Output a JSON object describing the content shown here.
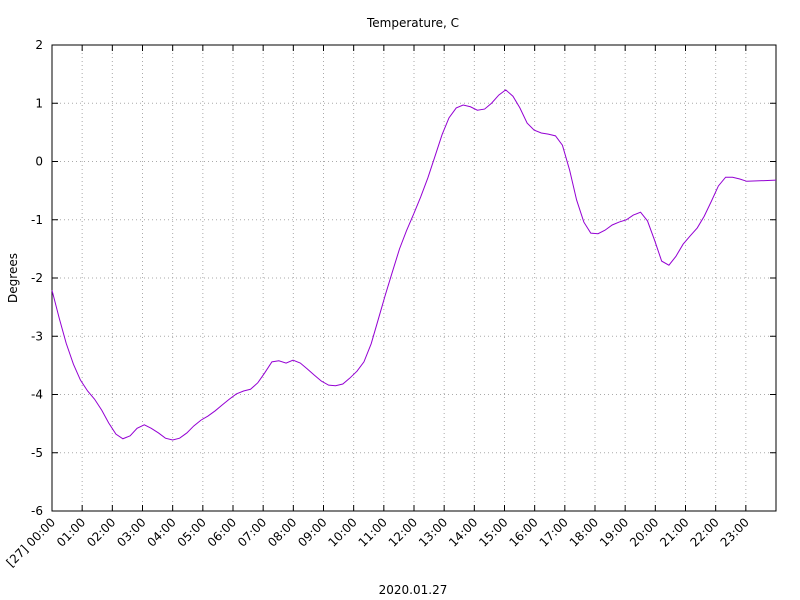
{
  "chart_data": {
    "type": "line",
    "title": "Temperature, C",
    "xlabel": "2020.01.27",
    "ylabel": "Degrees",
    "x": [
      0,
      0.24,
      0.47,
      0.71,
      0.94,
      1.18,
      1.41,
      1.65,
      1.88,
      2.12,
      2.35,
      2.59,
      2.82,
      3.06,
      3.29,
      3.53,
      3.76,
      4.0,
      4.23,
      4.47,
      4.7,
      4.94,
      5.17,
      5.41,
      5.64,
      5.88,
      6.11,
      6.35,
      6.58,
      6.82,
      7.05,
      7.29,
      7.52,
      7.76,
      7.99,
      8.23,
      8.46,
      8.7,
      8.93,
      9.17,
      9.4,
      9.64,
      9.87,
      10.11,
      10.34,
      10.58,
      10.81,
      11.05,
      11.28,
      11.52,
      11.75,
      11.99,
      12.22,
      12.46,
      12.69,
      12.93,
      13.16,
      13.4,
      13.63,
      13.87,
      14.1,
      14.34,
      14.57,
      14.81,
      15.04,
      15.28,
      15.51,
      15.75,
      15.98,
      16.22,
      16.45,
      16.69,
      16.92,
      17.16,
      17.39,
      17.63,
      17.86,
      18.1,
      18.33,
      18.57,
      18.8,
      19.04,
      19.27,
      19.51,
      19.74,
      19.98,
      20.21,
      20.45,
      20.68,
      20.92,
      21.15,
      21.39,
      21.62,
      21.86,
      22.09,
      22.33,
      22.56,
      22.8,
      23.03,
      24
    ],
    "series": [
      {
        "name": "Temperature",
        "color": "#9400d3",
        "values": [
          -2.21,
          -2.69,
          -3.12,
          -3.48,
          -3.75,
          -3.94,
          -4.08,
          -4.27,
          -4.49,
          -4.68,
          -4.76,
          -4.71,
          -4.58,
          -4.52,
          -4.58,
          -4.66,
          -4.75,
          -4.78,
          -4.75,
          -4.66,
          -4.54,
          -4.44,
          -4.37,
          -4.28,
          -4.18,
          -4.08,
          -3.99,
          -3.94,
          -3.91,
          -3.8,
          -3.63,
          -3.44,
          -3.42,
          -3.46,
          -3.41,
          -3.46,
          -3.56,
          -3.67,
          -3.77,
          -3.84,
          -3.85,
          -3.82,
          -3.72,
          -3.6,
          -3.44,
          -3.13,
          -2.72,
          -2.29,
          -1.9,
          -1.5,
          -1.19,
          -0.9,
          -0.61,
          -0.28,
          0.08,
          0.46,
          0.75,
          0.92,
          0.97,
          0.94,
          0.88,
          0.9,
          1.0,
          1.14,
          1.23,
          1.12,
          0.92,
          0.66,
          0.54,
          0.49,
          0.47,
          0.44,
          0.28,
          -0.15,
          -0.66,
          -1.04,
          -1.23,
          -1.24,
          -1.18,
          -1.09,
          -1.04,
          -1.0,
          -0.92,
          -0.87,
          -1.02,
          -1.36,
          -1.71,
          -1.78,
          -1.63,
          -1.42,
          -1.28,
          -1.14,
          -0.94,
          -0.68,
          -0.42,
          -0.27,
          -0.27,
          -0.3,
          -0.34,
          -0.32
        ]
      }
    ],
    "xlim": [
      0,
      24
    ],
    "xticks": [
      {
        "value": 0,
        "label": "[27] 00:00"
      },
      {
        "value": 1,
        "label": "01:00"
      },
      {
        "value": 2,
        "label": "02:00"
      },
      {
        "value": 3,
        "label": "03:00"
      },
      {
        "value": 4,
        "label": "04:00"
      },
      {
        "value": 5,
        "label": "05:00"
      },
      {
        "value": 6,
        "label": "06:00"
      },
      {
        "value": 7,
        "label": "07:00"
      },
      {
        "value": 8,
        "label": "08:00"
      },
      {
        "value": 9,
        "label": "09:00"
      },
      {
        "value": 10,
        "label": "10:00"
      },
      {
        "value": 11,
        "label": "11:00"
      },
      {
        "value": 12,
        "label": "12:00"
      },
      {
        "value": 13,
        "label": "13:00"
      },
      {
        "value": 14,
        "label": "14:00"
      },
      {
        "value": 15,
        "label": "15:00"
      },
      {
        "value": 16,
        "label": "16:00"
      },
      {
        "value": 17,
        "label": "17:00"
      },
      {
        "value": 18,
        "label": "18:00"
      },
      {
        "value": 19,
        "label": "19:00"
      },
      {
        "value": 20,
        "label": "20:00"
      },
      {
        "value": 21,
        "label": "21:00"
      },
      {
        "value": 22,
        "label": "22:00"
      },
      {
        "value": 23,
        "label": "23:00"
      }
    ],
    "ylim": [
      -6,
      2
    ],
    "yticks": [
      -6,
      -5,
      -4,
      -3,
      -2,
      -1,
      0,
      1,
      2
    ],
    "grid": true
  }
}
